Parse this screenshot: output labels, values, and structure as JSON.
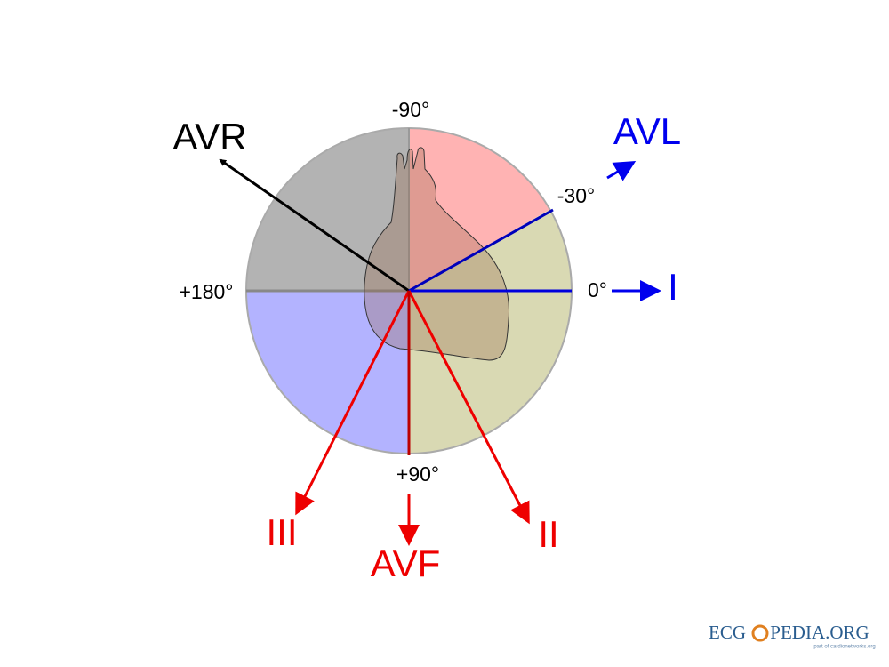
{
  "angles": {
    "minus90": "-90°",
    "minus30": "-30°",
    "zero": "0°",
    "plus90": "+90°",
    "plus180": "+180°"
  },
  "leads": {
    "avr": "AVR",
    "avl": "AVL",
    "i": "I",
    "ii": "II",
    "iii": "III",
    "avf": "AVF"
  },
  "logo": {
    "left": "ECG",
    "right": "PEDIA.ORG",
    "tagline": "part of cardionetworks.org"
  }
}
